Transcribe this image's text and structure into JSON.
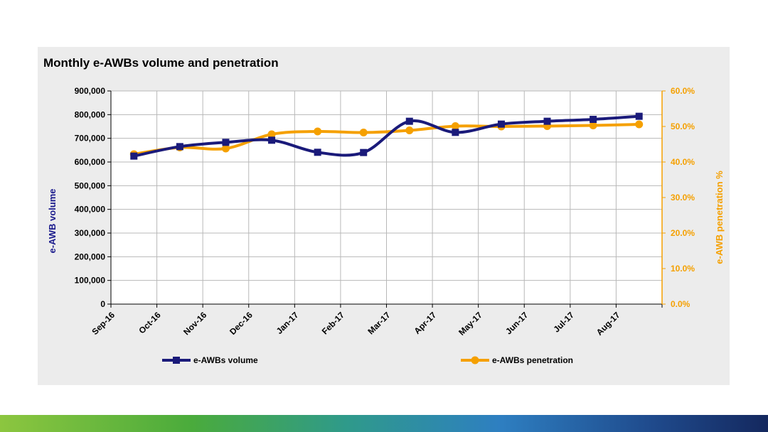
{
  "chart_data": {
    "type": "line",
    "title": "Monthly e-AWBs volume and penetration",
    "categories": [
      "Sep-16",
      "Oct-16",
      "Nov-16",
      "Dec-16",
      "Jan-17",
      "Feb-17",
      "Mar-17",
      "Apr-17",
      "May-17",
      "Jun-17",
      "Jul-17",
      "Aug-17"
    ],
    "ylabel": "e-AWB volume",
    "y2label": "e-AWB penetration %",
    "ylim": [
      0,
      900000
    ],
    "y2lim": [
      0,
      60
    ],
    "y_ticks": [
      "0",
      "100,000",
      "200,000",
      "300,000",
      "400,000",
      "500,000",
      "600,000",
      "700,000",
      "800,000",
      "900,000"
    ],
    "y2_ticks": [
      "0.0%",
      "10.0%",
      "20.0%",
      "30.0%",
      "40.0%",
      "50.0%",
      "60.0%"
    ],
    "grid": true,
    "legend_position": "bottom",
    "series": [
      {
        "name": "e-AWBs volume",
        "axis": "left",
        "color": "#1a1a7a",
        "marker": "square",
        "values": [
          625000,
          665000,
          683000,
          692000,
          641000,
          640000,
          772000,
          725000,
          760000,
          772000,
          780000,
          793000
        ]
      },
      {
        "name": "e-AWBs penetration",
        "axis": "right",
        "color": "#f5a000",
        "marker": "circle",
        "values": [
          42.2,
          44.1,
          43.8,
          47.8,
          48.6,
          48.3,
          48.9,
          50.1,
          50.0,
          50.1,
          50.3,
          50.6
        ]
      }
    ]
  }
}
